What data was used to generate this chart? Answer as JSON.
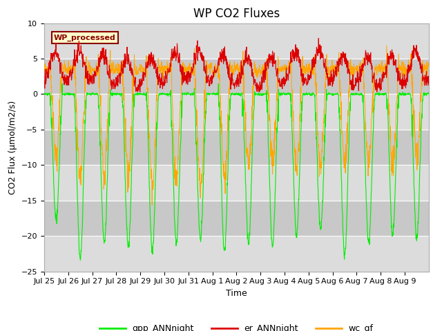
{
  "title": "WP CO2 Fluxes",
  "xlabel": "Time",
  "ylabel": "CO2 Flux (μmol/m2/s)",
  "ylim": [
    -25,
    10
  ],
  "yticks": [
    -25,
    -20,
    -15,
    -10,
    -5,
    0,
    5,
    10
  ],
  "n_days": 16,
  "ppd": 96,
  "gpp_color": "#00EE00",
  "er_color": "#DD0000",
  "wc_color": "#FFA500",
  "legend_label": "WP_processed",
  "legend_bg": "#FFFFCC",
  "legend_border": "#8B0000",
  "plot_bg": "#E0E0E0",
  "band_colors": [
    "#DCDCDC",
    "#C8C8C8"
  ],
  "line_labels": [
    "gpp_ANNnight",
    "er_ANNnight",
    "wc_gf"
  ],
  "grid_color": "#FFFFFF",
  "title_fontsize": 12,
  "axis_label_fontsize": 9,
  "tick_fontsize": 8,
  "xtick_labels": [
    "Jul 25",
    "Jul 26",
    "Jul 27",
    "Jul 28",
    "Jul 29",
    "Jul 30",
    "Jul 31",
    "Aug 1",
    "Aug 2",
    "Aug 3",
    "Aug 4",
    "Aug 5",
    "Aug 6",
    "Aug 7",
    "Aug 8",
    "Aug 9"
  ]
}
